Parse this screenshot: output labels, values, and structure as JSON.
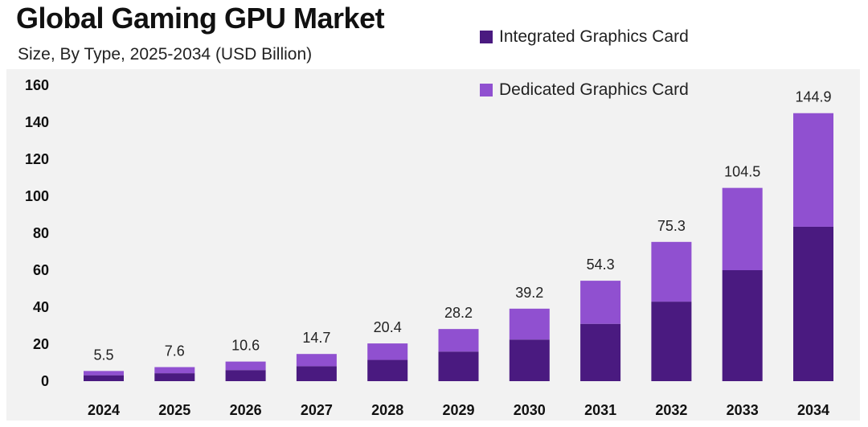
{
  "title": "Global Gaming GPU Market",
  "subtitle": "Size, By Type, 2025-2034 (USD Billion)",
  "colors": {
    "integrated": "#4a1a80",
    "dedicated": "#9050d0",
    "background": "#f2f2f2"
  },
  "chart_data": {
    "type": "bar",
    "stacked": true,
    "categories": [
      "2024",
      "2025",
      "2026",
      "2027",
      "2028",
      "2029",
      "2030",
      "2031",
      "2032",
      "2033",
      "2034"
    ],
    "series": [
      {
        "name": "Integrated Graphics Card",
        "values": [
          3.2,
          4.3,
          6.0,
          8.1,
          11.5,
          16.0,
          22.5,
          31.0,
          43.0,
          60.0,
          83.5
        ]
      },
      {
        "name": "Dedicated Graphics Card",
        "values": [
          2.3,
          3.3,
          4.6,
          6.6,
          8.9,
          12.2,
          16.7,
          23.3,
          32.3,
          44.5,
          61.4
        ]
      }
    ],
    "totals": [
      "5.5",
      "7.6",
      "10.6",
      "14.7",
      "20.4",
      "28.2",
      "39.2",
      "54.3",
      "75.3",
      "104.5",
      "144.9"
    ],
    "ylim": [
      0,
      160
    ],
    "yticks": [
      "0",
      "20",
      "40",
      "60",
      "80",
      "100",
      "120",
      "140",
      "160"
    ],
    "xlabel": "",
    "ylabel": "",
    "grid": false,
    "legend_position": "top-right"
  }
}
